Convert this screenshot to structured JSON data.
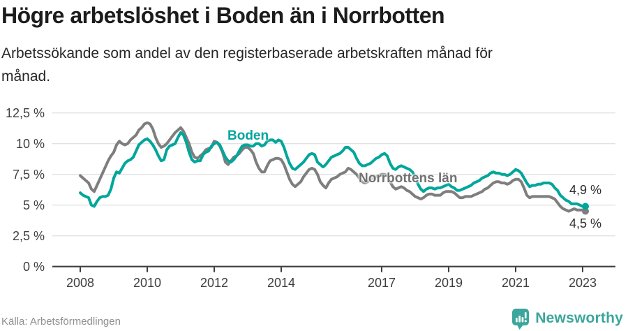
{
  "header": {
    "title": "Högre arbetslöshet i Boden än i Norrbotten",
    "subtitle_lines": [
      "Arbetssökande som andel av den registerbaserade arbetskraften månad för",
      "månad."
    ]
  },
  "chart_data": {
    "type": "line",
    "unit": "percent",
    "x_interval": "monthly",
    "x_start": "2008-01",
    "x_end": "2023-02",
    "x_tick_years": [
      2008,
      2010,
      2012,
      2014,
      2017,
      2019,
      2021,
      2023
    ],
    "x_tick_labels": [
      "2008",
      "2010",
      "2012",
      "2014",
      "2017",
      "2019",
      "2021",
      "2023"
    ],
    "y_tick_values": [
      12.5,
      10,
      7.5,
      5,
      2.5,
      0
    ],
    "y_tick_labels": [
      "12,5 %",
      "10 %",
      "7,5 %",
      "5 %",
      "2,5 %",
      "0 %"
    ],
    "ylim": [
      0,
      12.5
    ],
    "grid": "horizontal",
    "legend_position": "inline-labels",
    "series": [
      {
        "name": "Boden",
        "label_text": "Boden",
        "color": "#00a69b",
        "end_label": "4,9 %",
        "last_value": 4.9,
        "values": [
          6.0,
          5.8,
          5.7,
          5.6,
          5.0,
          4.9,
          5.3,
          5.6,
          5.7,
          5.7,
          5.8,
          6.3,
          7.2,
          7.7,
          7.6,
          8.0,
          8.4,
          8.6,
          8.7,
          8.9,
          9.4,
          9.9,
          10.1,
          10.3,
          10.4,
          10.2,
          9.9,
          9.5,
          9.0,
          8.6,
          8.7,
          9.5,
          9.8,
          9.9,
          10.0,
          10.5,
          10.9,
          10.7,
          10.1,
          9.3,
          8.7,
          8.5,
          8.6,
          8.6,
          9.1,
          9.3,
          9.4,
          9.8,
          10.0,
          10.1,
          9.9,
          9.4,
          8.9,
          8.6,
          8.5,
          8.7,
          9.0,
          9.4,
          9.8,
          9.9,
          9.9,
          9.8,
          9.8,
          10.0,
          10.0,
          9.8,
          9.9,
          10.2,
          10.3,
          10.3,
          10.1,
          10.3,
          10.2,
          9.7,
          9.0,
          8.4,
          8.0,
          7.9,
          8.1,
          8.3,
          8.5,
          8.8,
          9.1,
          9.2,
          9.1,
          8.5,
          8.3,
          8.1,
          8.3,
          8.6,
          8.9,
          9.0,
          9.1,
          9.2,
          9.4,
          9.7,
          9.7,
          9.5,
          9.3,
          8.8,
          8.4,
          8.2,
          8.2,
          8.3,
          8.4,
          8.6,
          8.8,
          8.9,
          9.1,
          9.2,
          9.0,
          8.4,
          8.0,
          7.9,
          8.1,
          8.2,
          8.1,
          8.0,
          7.9,
          7.7,
          7.3,
          6.7,
          6.3,
          6.1,
          6.3,
          6.4,
          6.4,
          6.3,
          6.4,
          6.4,
          6.5,
          6.6,
          6.7,
          6.5,
          6.4,
          6.2,
          6.2,
          6.3,
          6.4,
          6.5,
          6.6,
          6.8,
          6.9,
          7.0,
          7.2,
          7.3,
          7.4,
          7.6,
          7.7,
          7.6,
          7.6,
          7.5,
          7.5,
          7.4,
          7.5,
          7.7,
          7.9,
          7.8,
          7.6,
          7.2,
          6.8,
          6.5,
          6.6,
          6.6,
          6.7,
          6.7,
          6.8,
          6.8,
          6.8,
          6.7,
          6.4,
          6.2,
          5.8,
          5.6,
          5.4,
          5.3,
          5.1,
          5.1,
          5.1,
          5.0,
          4.9,
          4.9
        ]
      },
      {
        "name": "Norrbottens län",
        "label_text": "Norrbottens län",
        "color": "#7e7e7e",
        "end_label": "4,5 %",
        "last_value": 4.5,
        "values": [
          7.4,
          7.2,
          7.0,
          6.8,
          6.3,
          6.1,
          6.6,
          7.1,
          7.6,
          8.1,
          8.6,
          9.0,
          9.3,
          9.9,
          10.2,
          10.0,
          9.9,
          10.0,
          10.3,
          10.5,
          10.7,
          11.1,
          11.3,
          11.6,
          11.7,
          11.6,
          11.2,
          10.5,
          10.0,
          9.7,
          9.8,
          10.0,
          10.3,
          10.6,
          10.9,
          11.1,
          11.3,
          11.0,
          10.5,
          10.0,
          9.3,
          8.9,
          8.8,
          9.0,
          9.2,
          9.5,
          9.6,
          9.7,
          10.2,
          10.1,
          9.8,
          9.3,
          8.5,
          8.3,
          8.6,
          8.9,
          9.0,
          9.2,
          9.5,
          9.7,
          9.7,
          9.5,
          9.2,
          8.5,
          8.0,
          7.7,
          7.7,
          8.2,
          8.6,
          8.7,
          8.8,
          8.8,
          8.7,
          8.3,
          7.7,
          7.1,
          6.7,
          6.5,
          6.7,
          6.9,
          7.3,
          7.6,
          7.9,
          8.0,
          7.9,
          7.5,
          6.9,
          6.6,
          6.4,
          6.8,
          7.1,
          7.2,
          7.3,
          7.5,
          7.6,
          7.7,
          8.0,
          7.9,
          7.7,
          7.5,
          7.2,
          6.9,
          6.8,
          6.9,
          7.1,
          7.2,
          7.3,
          7.4,
          7.5,
          7.5,
          7.4,
          6.9,
          6.5,
          6.3,
          6.4,
          6.5,
          6.4,
          6.2,
          6.1,
          5.9,
          5.7,
          5.6,
          5.5,
          5.6,
          5.8,
          5.9,
          5.9,
          5.8,
          5.8,
          5.8,
          6.0,
          6.1,
          6.1,
          6.1,
          6.0,
          5.8,
          5.6,
          5.6,
          5.7,
          5.7,
          5.7,
          5.8,
          5.9,
          6.0,
          6.1,
          6.3,
          6.4,
          6.6,
          6.8,
          6.9,
          6.9,
          6.8,
          6.8,
          6.7,
          6.8,
          7.0,
          7.1,
          7.1,
          6.9,
          6.4,
          5.8,
          5.6,
          5.7,
          5.7,
          5.7,
          5.7,
          5.7,
          5.7,
          5.7,
          5.6,
          5.5,
          5.2,
          4.9,
          4.7,
          4.6,
          4.5,
          4.6,
          4.7,
          4.6,
          4.6,
          4.6,
          4.5
        ]
      }
    ]
  },
  "footer": {
    "source": "Källa: Arbetsförmedlingen",
    "brand": "Newsworthy"
  },
  "colors": {
    "accent_teal": "#00a69b",
    "series_gray": "#7e7e7e",
    "grid": "#e2e2e2",
    "axis": "#3d3d3d",
    "title_text": "#1c1c1c",
    "body_text": "#272727",
    "source_text": "#8f8f8f",
    "logo_teal": "#3ba69c"
  }
}
